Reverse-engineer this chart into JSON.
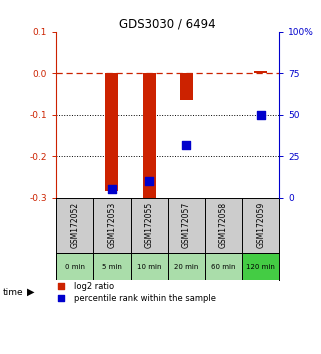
{
  "title": "GDS3030 / 6494",
  "samples": [
    "GSM172052",
    "GSM172053",
    "GSM172055",
    "GSM172057",
    "GSM172058",
    "GSM172059"
  ],
  "time_labels": [
    "0 min",
    "5 min",
    "10 min",
    "20 min",
    "60 min",
    "120 min"
  ],
  "log2_ratio": [
    0.0,
    -0.285,
    -0.305,
    -0.065,
    0.0,
    0.005
  ],
  "percentile_rank": [
    null,
    5.0,
    10.0,
    32.0,
    null,
    50.0
  ],
  "ylim_left": [
    -0.3,
    0.1
  ],
  "ylim_right": [
    0,
    100
  ],
  "yticks_left": [
    -0.3,
    -0.2,
    -0.1,
    0.0,
    0.1
  ],
  "yticks_right": [
    0,
    25,
    50,
    75,
    100
  ],
  "ytick_labels_right": [
    "0",
    "25",
    "50",
    "75",
    "100%"
  ],
  "bar_color": "#cc2200",
  "dot_color": "#0000cc",
  "grid_color": "#000000",
  "bg_color_main": "#ffffff",
  "sample_box_color": "#cccccc",
  "time_box_color_light": "#aaddaa",
  "time_box_color_dark": "#44cc44",
  "bar_width": 0.35,
  "dot_size": 28,
  "legend_log2_label": "log2 ratio",
  "legend_pct_label": "percentile rank within the sample"
}
